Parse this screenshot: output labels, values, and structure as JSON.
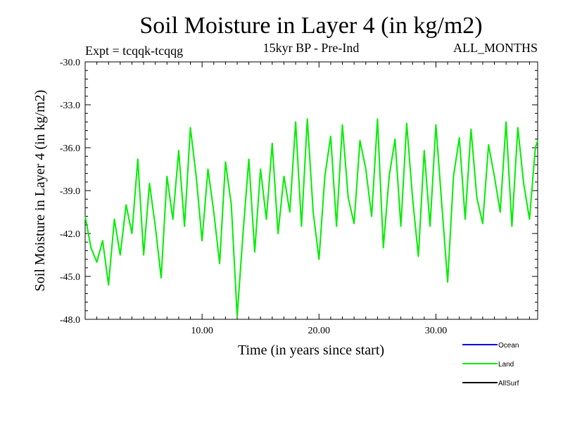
{
  "chart_data": {
    "type": "line",
    "title": "Soil Moisture in Layer 4 (in kg/m2)",
    "subtitle_left": "Expt = tcqqk-tcqqg",
    "subtitle_center": "15kyr BP - Pre-Ind",
    "subtitle_right": "ALL_MONTHS",
    "xlabel": "Time (in years since start)",
    "ylabel": "Soil Moisture in Layer 4 (in kg/m2)",
    "xlim": [
      0,
      38.7
    ],
    "ylim": [
      -48.0,
      -30.0
    ],
    "x_ticks": [
      10,
      20,
      30
    ],
    "x_tick_labels": [
      "10.00",
      "20.00",
      "30.00"
    ],
    "y_ticks": [
      -30.0,
      -33.0,
      -36.0,
      -39.0,
      -42.0,
      -45.0,
      -48.0
    ],
    "y_tick_labels": [
      "-30.0",
      "-33.0",
      "-36.0",
      "-39.0",
      "-42.0",
      "-45.0",
      "-48.0"
    ],
    "series": [
      {
        "name": "Land",
        "color": "#00ee00",
        "x": [
          0.0,
          0.5,
          1.0,
          1.5,
          2.0,
          2.5,
          3.0,
          3.5,
          4.0,
          4.5,
          5.0,
          5.5,
          6.0,
          6.5,
          7.0,
          7.5,
          8.0,
          8.5,
          9.0,
          9.5,
          10.0,
          10.5,
          11.0,
          11.5,
          12.0,
          12.5,
          13.0,
          13.5,
          14.0,
          14.5,
          15.0,
          15.5,
          16.0,
          16.5,
          17.0,
          17.5,
          18.0,
          18.5,
          19.0,
          19.5,
          20.0,
          20.5,
          21.0,
          21.5,
          22.0,
          22.5,
          23.0,
          23.5,
          24.0,
          24.5,
          25.0,
          25.5,
          26.0,
          26.5,
          27.0,
          27.5,
          28.0,
          28.5,
          29.0,
          29.5,
          30.0,
          30.5,
          31.0,
          31.5,
          32.0,
          32.5,
          33.0,
          33.5,
          34.0,
          34.5,
          35.0,
          35.5,
          36.0,
          36.5,
          37.0,
          37.5,
          38.0,
          38.5,
          38.7
        ],
        "values": [
          -40.8,
          -43.0,
          -44.0,
          -42.5,
          -45.6,
          -41.0,
          -43.5,
          -40.0,
          -42.0,
          -36.8,
          -43.5,
          -38.5,
          -41.5,
          -45.1,
          -38.0,
          -41.0,
          -36.2,
          -41.5,
          -34.6,
          -38.0,
          -42.5,
          -37.5,
          -40.5,
          -44.1,
          -37.0,
          -40.0,
          -47.8,
          -42.0,
          -36.8,
          -43.3,
          -37.5,
          -41.0,
          -35.7,
          -42.0,
          -38.0,
          -40.5,
          -34.2,
          -41.5,
          -34.0,
          -40.5,
          -43.8,
          -38.0,
          -35.2,
          -41.5,
          -34.4,
          -39.5,
          -41.3,
          -35.5,
          -37.5,
          -40.8,
          -34.0,
          -43.0,
          -38.0,
          -35.4,
          -41.5,
          -34.3,
          -39.5,
          -43.6,
          -36.2,
          -41.5,
          -34.4,
          -40.0,
          -45.4,
          -38.0,
          -35.3,
          -41.0,
          -34.7,
          -39.5,
          -41.3,
          -35.8,
          -38.0,
          -40.5,
          -34.2,
          -41.5,
          -34.6,
          -38.5,
          -41.0,
          -36.0,
          -35.5
        ]
      }
    ],
    "legend": {
      "placement": "bottom-right",
      "entries": [
        {
          "name": "Ocean",
          "color": "#0000ee"
        },
        {
          "name": "Land",
          "color": "#00ee00"
        },
        {
          "name": "AllSurf",
          "color": "#000000"
        }
      ]
    }
  }
}
